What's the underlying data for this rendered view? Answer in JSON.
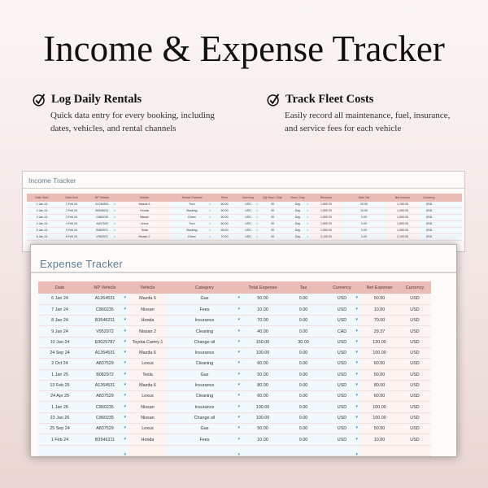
{
  "title": "Income & Expense Tracker",
  "features": [
    {
      "icon": "check-circle-icon",
      "heading": "Log Daily Rentals",
      "line1": "Quick data entry for every booking, including",
      "line2": "dates, vehicles, and rental channels"
    },
    {
      "icon": "check-circle-icon",
      "heading": "Track Fleet Costs",
      "line1": "Easily record all maintenance, fuel, insurance,",
      "line2": "and service fees for each vehicle"
    }
  ],
  "income": {
    "title": "Income Tracker",
    "columns": [
      "Date Start",
      "Date End",
      "NP Vehicle",
      "Vehicle",
      "Rental Channel",
      "Price",
      "Currency",
      "Qty Hour / Day",
      "Hour / Day",
      "Revenue",
      "Sale Tax",
      "Net Income",
      "Currency",
      ""
    ],
    "rows": [
      [
        "1 Jan 24",
        "1 Feb 24",
        "A1264531",
        "Mazda 6",
        "Turo",
        "60.00",
        "USD",
        "30",
        "Day",
        "1,800.00",
        "20.00",
        "1,780.00",
        "USD",
        ""
      ],
      [
        "2 Jan 24",
        "2 Feb 24",
        "B3546211",
        "Honda",
        "Booking",
        "50.00",
        "USD",
        "30",
        "Day",
        "1,500.00",
        "10.00",
        "1,490.00",
        "USD",
        ""
      ],
      [
        "3 Jan 24",
        "3 Feb 24",
        "C860235",
        "Nissan",
        "Direct",
        "50.00",
        "USD",
        "30",
        "Day",
        "1,500.00",
        "0.00",
        "1,500.00",
        "USD",
        ""
      ],
      [
        "4 Jan 24",
        "4 Feb 24",
        "A837529",
        "Lexus",
        "Turo",
        "60.00",
        "USD",
        "30",
        "Day",
        "1,800.00",
        "0.00",
        "1,800.00",
        "USD",
        ""
      ],
      [
        "5 Jan 24",
        "5 Feb 24",
        "B082972",
        "Tesla",
        "Booking",
        "65.00",
        "USD",
        "30",
        "Day",
        "1,950.00",
        "0.00",
        "1,950.00",
        "USD",
        ""
      ],
      [
        "6 Jan 24",
        "6 Feb 24",
        "V952972",
        "Nissan 2",
        "Direct",
        "70.00",
        "USD",
        "30",
        "Day",
        "2,100.00",
        "0.00",
        "2,100.00",
        "USD",
        ""
      ]
    ]
  },
  "expense": {
    "title": "Expense Tracker",
    "columns": [
      "Date",
      "NP Vehicle",
      "Vehicle",
      "Category",
      "Total Expense",
      "Tax",
      "Currency",
      "Net Expense",
      "Currency"
    ],
    "rows": [
      [
        "6 Jan 24",
        "A1264531",
        "Mazda 6",
        "Gas",
        "50.00",
        "0.00",
        "USD",
        "50.00",
        "USD"
      ],
      [
        "7 Jan 24",
        "C860235",
        "Nissan",
        "Fees",
        "10.00",
        "0.00",
        "USD",
        "10.00",
        "USD"
      ],
      [
        "8 Jan 24",
        "B3546211",
        "Honda",
        "Insurance",
        "70.00",
        "0.00",
        "USD",
        "70.00",
        "USD"
      ],
      [
        "9 Jan 24",
        "V952972",
        "Nissan 2",
        "Cleaning",
        "40.00",
        "0.00",
        "CAD",
        "29.37",
        "USD"
      ],
      [
        "10 Jan 24",
        "E0025787",
        "Toyota Camry 1",
        "Change oil",
        "150.00",
        "30.00",
        "USD",
        "120.00",
        "USD"
      ],
      [
        "24 Sep 24",
        "A1264531",
        "Mazda 6",
        "Insurance",
        "100.00",
        "0.00",
        "USD",
        "100.00",
        "USD"
      ],
      [
        "2 Oct 24",
        "A837529",
        "Lexus",
        "Cleaning",
        "60.00",
        "0.00",
        "USD",
        "60.00",
        "USD"
      ],
      [
        "1 Jan 25",
        "B082972",
        "Tesla",
        "Gas",
        "50.00",
        "0.00",
        "USD",
        "50.00",
        "USD"
      ],
      [
        "13 Feb 25",
        "A1264531",
        "Mazda 6",
        "Insurance",
        "80.00",
        "0.00",
        "USD",
        "80.00",
        "USD"
      ],
      [
        "24 Apr 25",
        "A837529",
        "Lexus",
        "Cleaning",
        "60.00",
        "0.00",
        "USD",
        "60.00",
        "USD"
      ],
      [
        "1 Jan 26",
        "C860235",
        "Nissan",
        "Insurance",
        "100.00",
        "0.00",
        "USD",
        "100.00",
        "USD"
      ],
      [
        "23 Jan 26",
        "C860235",
        "Nissan",
        "Change oil",
        "100.00",
        "0.00",
        "USD",
        "100.00",
        "USD"
      ],
      [
        "25 Sep 24",
        "A837529",
        "Lexus",
        "Gas",
        "50.00",
        "0.00",
        "USD",
        "50.00",
        "USD"
      ],
      [
        "1 Feb 24",
        "B3546211",
        "Honda",
        "Fees",
        "10.00",
        "0.00",
        "USD",
        "10.00",
        "USD"
      ],
      [
        "",
        "",
        "",
        "",
        "",
        "",
        "",
        "",
        ""
      ]
    ]
  },
  "colors": {
    "header": "#e9bcb6",
    "title": "#5b7d93",
    "dropdown": "#2a8fd0"
  }
}
